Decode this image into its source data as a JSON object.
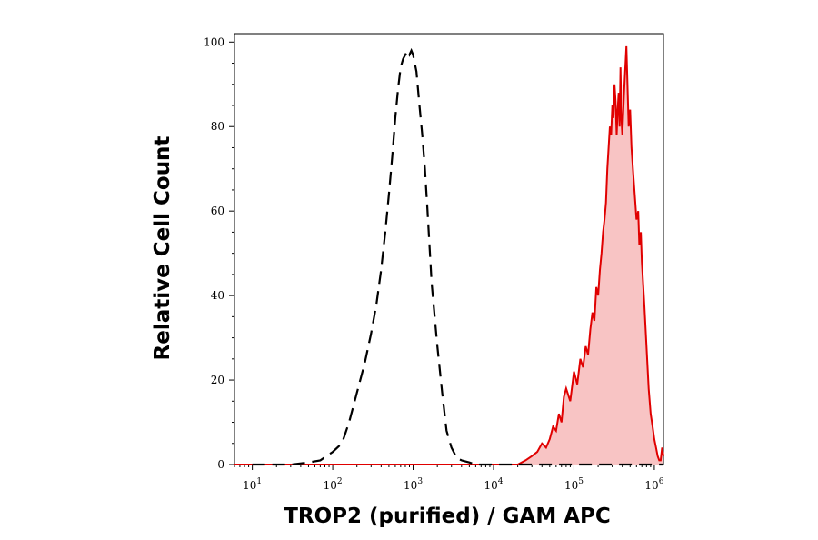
{
  "chart_data": {
    "type": "area",
    "title": "",
    "xlabel": "TROP2 (purified) / GAM APC",
    "ylabel": "Relative Cell Count",
    "x_scale": "log",
    "xlim": [
      6,
      1300000
    ],
    "ylim": [
      0,
      102
    ],
    "x_ticks": [
      {
        "base": "10",
        "exp": "1",
        "value": 10
      },
      {
        "base": "10",
        "exp": "2",
        "value": 100
      },
      {
        "base": "10",
        "exp": "3",
        "value": 1000
      },
      {
        "base": "10",
        "exp": "4",
        "value": 10000
      },
      {
        "base": "10",
        "exp": "5",
        "value": 100000
      },
      {
        "base": "10",
        "exp": "6",
        "value": 1000000
      }
    ],
    "y_ticks": [
      "0",
      "20",
      "40",
      "60",
      "80",
      "100"
    ],
    "colors": {
      "control": "#000000",
      "stained_line": "#e00000",
      "stained_fill": "#f8c4c4"
    },
    "series": [
      {
        "style": "dashed-black",
        "x": [
          10,
          30,
          50,
          70,
          100,
          130,
          160,
          200,
          250,
          300,
          350,
          400,
          450,
          500,
          550,
          600,
          650,
          700,
          750,
          800,
          850,
          900,
          950,
          1000,
          1100,
          1200,
          1300,
          1400,
          1500,
          1700,
          2000,
          2300,
          2600,
          3000,
          3500,
          4000,
          5000,
          6000,
          8000,
          10000,
          1300000
        ],
        "y": [
          0,
          0,
          0.5,
          1,
          3,
          5,
          10,
          17,
          24,
          31,
          38,
          46,
          55,
          64,
          73,
          82,
          89,
          94,
          96,
          97,
          98,
          97,
          98,
          97,
          93,
          85,
          78,
          70,
          61,
          43,
          28,
          17,
          8,
          4,
          1.5,
          1,
          0.5,
          0,
          0,
          0,
          0
        ]
      },
      {
        "style": "red-filled",
        "x": [
          6,
          20000,
          25000,
          30000,
          35000,
          40000,
          45000,
          50000,
          55000,
          60000,
          65000,
          70000,
          75000,
          80000,
          90000,
          100000,
          110000,
          120000,
          130000,
          140000,
          150000,
          160000,
          170000,
          180000,
          190000,
          200000,
          210000,
          220000,
          230000,
          240000,
          250000,
          260000,
          270000,
          280000,
          290000,
          300000,
          310000,
          320000,
          330000,
          340000,
          350000,
          360000,
          370000,
          380000,
          390000,
          400000,
          420000,
          450000,
          480000,
          500000,
          520000,
          550000,
          580000,
          600000,
          630000,
          650000,
          680000,
          700000,
          750000,
          800000,
          850000,
          900000,
          950000,
          1000000,
          1050000,
          1100000,
          1150000,
          1200000,
          1250000,
          1300000
        ],
        "y": [
          0,
          0,
          1,
          2,
          3,
          5,
          4,
          6,
          9,
          8,
          12,
          10,
          16,
          18,
          15,
          22,
          19,
          25,
          23,
          28,
          26,
          32,
          36,
          34,
          42,
          40,
          46,
          50,
          55,
          58,
          62,
          70,
          75,
          80,
          78,
          85,
          82,
          90,
          86,
          78,
          84,
          88,
          80,
          94,
          82,
          78,
          88,
          99,
          80,
          84,
          75,
          68,
          62,
          58,
          60,
          52,
          55,
          48,
          38,
          28,
          18,
          12,
          9,
          6,
          4,
          2,
          1,
          1,
          4,
          2
        ]
      }
    ]
  }
}
